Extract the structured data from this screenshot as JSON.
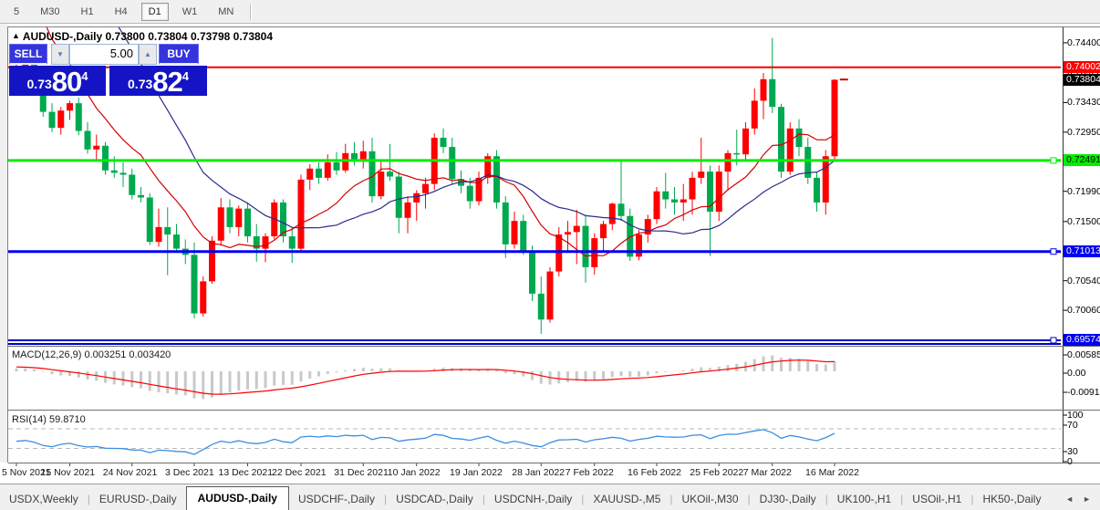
{
  "toolbar": {
    "timeframes": [
      {
        "label": "5",
        "active": false
      },
      {
        "label": "M30",
        "active": false
      },
      {
        "label": "H1",
        "active": false
      },
      {
        "label": "H4",
        "active": false
      },
      {
        "label": "D1",
        "active": true
      },
      {
        "label": "W1",
        "active": false
      },
      {
        "label": "MN",
        "active": false
      }
    ]
  },
  "chart_window": {
    "collapse_icon": "▲",
    "title": "AUDUSD-,Daily",
    "ohlc": "0.73800 0.73804 0.73798 0.73804",
    "trade_panel": {
      "sell_label": "SELL",
      "buy_label": "BUY",
      "volume": "5.00",
      "spin_down_icon": "▼",
      "spin_up_icon": "▲",
      "sell_price": {
        "small": "0.73",
        "big": "80",
        "sup": "4"
      },
      "buy_price": {
        "small": "0.73",
        "big": "82",
        "sup": "4"
      }
    }
  },
  "chart_data": {
    "type": "candlestick",
    "symbol": "AUDUSD",
    "timeframe": "Daily",
    "up_color": "#fe0000",
    "down_color": "#00a94f",
    "candles": [
      [
        0.7398,
        0.7408,
        0.7385,
        0.7402
      ],
      [
        0.7402,
        0.7416,
        0.7395,
        0.7412
      ],
      [
        0.7412,
        0.7425,
        0.738,
        0.7386
      ],
      [
        0.7386,
        0.7396,
        0.732,
        0.7328
      ],
      [
        0.7328,
        0.7342,
        0.7295,
        0.7302
      ],
      [
        0.7302,
        0.7336,
        0.7291,
        0.733
      ],
      [
        0.733,
        0.7346,
        0.7315,
        0.7342
      ],
      [
        0.7342,
        0.7351,
        0.729,
        0.7297
      ],
      [
        0.7297,
        0.7311,
        0.726,
        0.7267
      ],
      [
        0.7267,
        0.7291,
        0.7251,
        0.7273
      ],
      [
        0.7273,
        0.7279,
        0.7226,
        0.7233
      ],
      [
        0.7233,
        0.7256,
        0.7221,
        0.7229
      ],
      [
        0.7229,
        0.7246,
        0.7206,
        0.7226
      ],
      [
        0.7226,
        0.7236,
        0.7186,
        0.7193
      ],
      [
        0.7193,
        0.7206,
        0.7181,
        0.7189
      ],
      [
        0.7189,
        0.7196,
        0.7112,
        0.7117
      ],
      [
        0.7117,
        0.7171,
        0.7109,
        0.7141
      ],
      [
        0.7141,
        0.7173,
        0.7063,
        0.7129
      ],
      [
        0.7129,
        0.7146,
        0.7101,
        0.7106
      ],
      [
        0.7106,
        0.7121,
        0.7081,
        0.7096
      ],
      [
        0.7096,
        0.7116,
        0.6993,
        0.7001
      ],
      [
        0.7001,
        0.7061,
        0.6996,
        0.7053
      ],
      [
        0.7053,
        0.7126,
        0.7049,
        0.7119
      ],
      [
        0.7119,
        0.7188,
        0.7111,
        0.7173
      ],
      [
        0.7173,
        0.7186,
        0.7131,
        0.7141
      ],
      [
        0.7141,
        0.7176,
        0.7126,
        0.7171
      ],
      [
        0.7171,
        0.7181,
        0.7116,
        0.7126
      ],
      [
        0.7126,
        0.7146,
        0.7085,
        0.7106
      ],
      [
        0.7106,
        0.7131,
        0.7084,
        0.7126
      ],
      [
        0.7126,
        0.7186,
        0.7121,
        0.7181
      ],
      [
        0.7181,
        0.7186,
        0.7116,
        0.7126
      ],
      [
        0.7126,
        0.7141,
        0.7083,
        0.7106
      ],
      [
        0.7106,
        0.7226,
        0.7101,
        0.7218
      ],
      [
        0.7218,
        0.7243,
        0.7201,
        0.7236
      ],
      [
        0.7236,
        0.7246,
        0.7211,
        0.7221
      ],
      [
        0.7221,
        0.7259,
        0.7216,
        0.7246
      ],
      [
        0.7246,
        0.7263,
        0.7226,
        0.7233
      ],
      [
        0.7233,
        0.7276,
        0.7229,
        0.7261
      ],
      [
        0.7261,
        0.7279,
        0.7241,
        0.7251
      ],
      [
        0.7251,
        0.7281,
        0.7236,
        0.7264
      ],
      [
        0.7264,
        0.7286,
        0.7181,
        0.7191
      ],
      [
        0.7191,
        0.7251,
        0.7186,
        0.7231
      ],
      [
        0.7231,
        0.7276,
        0.7216,
        0.7223
      ],
      [
        0.7223,
        0.7231,
        0.7131,
        0.7156
      ],
      [
        0.7156,
        0.7191,
        0.7131,
        0.7181
      ],
      [
        0.7181,
        0.7201,
        0.7151,
        0.7196
      ],
      [
        0.7196,
        0.7221,
        0.7171,
        0.7211
      ],
      [
        0.7211,
        0.7293,
        0.7201,
        0.7286
      ],
      [
        0.7286,
        0.7301,
        0.7261,
        0.7271
      ],
      [
        0.7271,
        0.7286,
        0.7211,
        0.7219
      ],
      [
        0.7219,
        0.7233,
        0.7196,
        0.7208
      ],
      [
        0.7208,
        0.7221,
        0.7171,
        0.7183
      ],
      [
        0.7183,
        0.7231,
        0.7176,
        0.7221
      ],
      [
        0.7221,
        0.7261,
        0.7211,
        0.7256
      ],
      [
        0.7256,
        0.7266,
        0.7171,
        0.7181
      ],
      [
        0.7181,
        0.7191,
        0.7091,
        0.7113
      ],
      [
        0.7113,
        0.7166,
        0.7106,
        0.7151
      ],
      [
        0.7151,
        0.7161,
        0.7096,
        0.7103
      ],
      [
        0.7103,
        0.7111,
        0.7021,
        0.7033
      ],
      [
        0.7033,
        0.7061,
        0.6968,
        0.6991
      ],
      [
        0.6991,
        0.7076,
        0.6986,
        0.7069
      ],
      [
        0.7069,
        0.7141,
        0.7061,
        0.7129
      ],
      [
        0.7129,
        0.7151,
        0.7101,
        0.7133
      ],
      [
        0.7133,
        0.7169,
        0.7081,
        0.7143
      ],
      [
        0.7143,
        0.7161,
        0.7051,
        0.7076
      ],
      [
        0.7076,
        0.7131,
        0.7064,
        0.7123
      ],
      [
        0.7123,
        0.7151,
        0.7101,
        0.7146
      ],
      [
        0.7146,
        0.7181,
        0.7136,
        0.7179
      ],
      [
        0.7179,
        0.7249,
        0.7151,
        0.7159
      ],
      [
        0.7159,
        0.7171,
        0.7086,
        0.7093
      ],
      [
        0.7093,
        0.7136,
        0.7087,
        0.7129
      ],
      [
        0.7129,
        0.7161,
        0.7116,
        0.7154
      ],
      [
        0.7154,
        0.7206,
        0.7146,
        0.7199
      ],
      [
        0.7199,
        0.7229,
        0.7171,
        0.7186
      ],
      [
        0.7186,
        0.7206,
        0.7161,
        0.7181
      ],
      [
        0.7181,
        0.7211,
        0.7151,
        0.7186
      ],
      [
        0.7186,
        0.7231,
        0.7161,
        0.7221
      ],
      [
        0.7221,
        0.7286,
        0.7211,
        0.7231
      ],
      [
        0.7231,
        0.7241,
        0.7094,
        0.7166
      ],
      [
        0.7166,
        0.7241,
        0.7151,
        0.7231
      ],
      [
        0.7231,
        0.7266,
        0.7201,
        0.7261
      ],
      [
        0.7261,
        0.7299,
        0.7241,
        0.7259
      ],
      [
        0.7259,
        0.7311,
        0.7251,
        0.7301
      ],
      [
        0.7301,
        0.7366,
        0.7291,
        0.7346
      ],
      [
        0.7346,
        0.7391,
        0.7316,
        0.7381
      ],
      [
        0.7381,
        0.7448,
        0.7326,
        0.7336
      ],
      [
        0.7336,
        0.7341,
        0.7221,
        0.7231
      ],
      [
        0.7231,
        0.7311,
        0.7226,
        0.7301
      ],
      [
        0.7301,
        0.7316,
        0.7256,
        0.7271
      ],
      [
        0.7271,
        0.7286,
        0.7211,
        0.7221
      ],
      [
        0.7221,
        0.7231,
        0.7166,
        0.7181
      ],
      [
        0.7181,
        0.7266,
        0.7161,
        0.7256
      ],
      [
        0.7256,
        0.7381,
        0.7251,
        0.738
      ]
    ],
    "current_price": 0.73804,
    "date_labels": [
      {
        "i": 0,
        "label": "5 Nov 2021"
      },
      {
        "i": 6,
        "label": "15 Nov 2021"
      },
      {
        "i": 13,
        "label": "24 Nov 2021"
      },
      {
        "i": 20,
        "label": "3 Dec 2021"
      },
      {
        "i": 26,
        "label": "13 Dec 2021"
      },
      {
        "i": 32,
        "label": "22 Dec 2021"
      },
      {
        "i": 39,
        "label": "31 Dec 2021"
      },
      {
        "i": 45,
        "label": "10 Jan 2022"
      },
      {
        "i": 52,
        "label": "19 Jan 2022"
      },
      {
        "i": 59,
        "label": "28 Jan 2022"
      },
      {
        "i": 65,
        "label": "7 Feb 2022"
      },
      {
        "i": 72,
        "label": "16 Feb 2022"
      },
      {
        "i": 79,
        "label": "25 Feb 2022"
      },
      {
        "i": 85,
        "label": "7 Mar 2022"
      },
      {
        "i": 92,
        "label": "16 Mar 2022"
      }
    ],
    "hlines": [
      {
        "price": 0.74002,
        "color": "#fe0000",
        "width": 2
      },
      {
        "price": 0.72491,
        "color": "#00ee00",
        "width": 3,
        "handle": true
      },
      {
        "price": 0.71013,
        "color": "#0000f0",
        "width": 3,
        "handle": true
      },
      {
        "price": 0.69574,
        "color": "#0000c8",
        "width": 2,
        "double": true,
        "handle": true
      }
    ],
    "price_axis": {
      "ticks": [
        "0.74400",
        "0.73920",
        "0.73430",
        "0.72950",
        "0.72470",
        "0.71990",
        "0.71500",
        "0.71020",
        "0.70540",
        "0.70060",
        "0.69580"
      ],
      "tick_values": [
        0.744,
        0.7392,
        0.7343,
        0.7295,
        0.7247,
        0.7199,
        0.715,
        0.7102,
        0.7054,
        0.7006,
        0.6958
      ],
      "level_boxes": [
        {
          "value": 0.74002,
          "label": "0.74002",
          "bg": "#fe0000",
          "fg": "#ffffff"
        },
        {
          "value": 0.73804,
          "label": "0.73804",
          "bg": "#000000",
          "fg": "#ffffff"
        },
        {
          "value": 0.72491,
          "label": "0.72491",
          "bg": "#00ee00",
          "fg": "#000000"
        },
        {
          "value": 0.71013,
          "label": "0.71013",
          "bg": "#0000f0",
          "fg": "#ffffff"
        },
        {
          "value": 0.69574,
          "label": "0.69574",
          "bg": "#0000f0",
          "fg": "#ffffff"
        }
      ]
    },
    "moving_averages": {
      "fast_period": 10,
      "fast_color": "#d40000",
      "slow_period": 22,
      "slow_color": "#2b2b8f"
    },
    "macd": {
      "label": "MACD(12,26,9)",
      "values": "0.003251 0.003420",
      "fast": 12,
      "slow": 26,
      "signal_period": 9,
      "hist_color": "#c9c9c9",
      "signal_color": "#fe0000",
      "axis_labels": [
        "0.00585",
        "0.00",
        "-0.00918"
      ]
    },
    "rsi": {
      "label": "RSI(14)",
      "value": "59.8710",
      "period": 14,
      "color": "#3b8ee0",
      "levels": [
        70,
        30
      ],
      "axis_labels": [
        "100",
        "70",
        "30",
        "0"
      ]
    }
  },
  "tabs": {
    "items": [
      "USDX,Weekly",
      "EURUSD-,Daily",
      "AUDUSD-,Daily",
      "USDCHF-,Daily",
      "USDCAD-,Daily",
      "USDCNH-,Daily",
      "XAUUSD-,M5",
      "UKOil-,M30",
      "DJ30-,Daily",
      "UK100-,H1",
      "USOil-,H1",
      "HK50-,Daily"
    ],
    "active_index": 2,
    "left_arrow": "◄",
    "right_arrow": "►"
  }
}
